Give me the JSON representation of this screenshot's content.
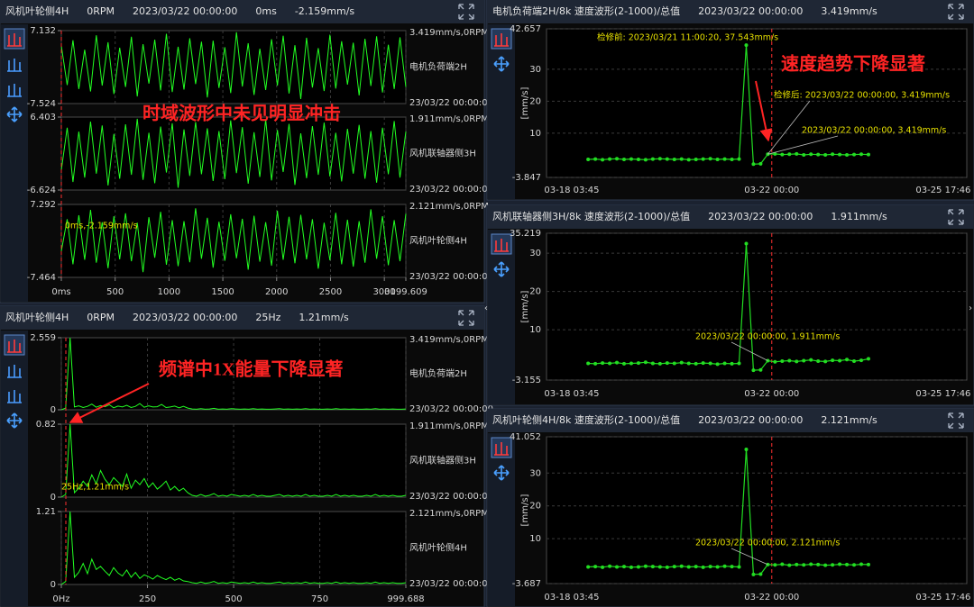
{
  "chart_data": [
    {
      "type": "line",
      "header": [
        "风机叶轮侧4H",
        "0RPM",
        "2023/03/22 00:00:00",
        "0ms",
        "-2.159mm/s"
      ],
      "xlim": [
        0,
        3199.609
      ],
      "xticks": [
        {
          "value": 0,
          "label": "0ms"
        },
        500,
        1000,
        1500,
        2000,
        2500,
        3000,
        3199.609
      ],
      "grid": true,
      "series": [
        {
          "name": "电机负荷端2H",
          "top_label": "3.419mm/s,0RPM",
          "bottom_label": "23/03/22 00:00:00",
          "color": "#22ff22",
          "ylim": [
            -7.524,
            7.132
          ],
          "yticks": [
            -7.524,
            7.132
          ],
          "values": [
            4.1,
            -3.8,
            5.2,
            -4.6,
            3.3,
            -5.1,
            6.2,
            -3.9,
            4.8,
            -5.6,
            3.7,
            -4.2,
            5.9,
            -6.1,
            4.4,
            -3.5,
            5.3,
            -4.9,
            6.5,
            -5.2,
            3.9,
            -4.7,
            5.6,
            -3.6,
            4.9,
            -6.3,
            5.1,
            -4.4,
            3.8,
            -5.4,
            6.8,
            -4.1,
            4.6,
            -5.8,
            3.5,
            -4.8,
            5.4,
            -3.9,
            6.1,
            -5.5,
            4.2,
            -6.6,
            5.7,
            -4.3,
            3.6,
            -5.0,
            6.3,
            -4.5,
            5.0,
            -3.7,
            4.7,
            -5.9,
            5.5,
            -4.0,
            6.0,
            -5.3,
            4.3,
            -4.6,
            5.8,
            -4.2
          ]
        },
        {
          "name": "风机联轴器侧3H",
          "top_label": "1.911mm/s,0RPM",
          "bottom_label": "23/03/22 00:00:00",
          "color": "#22ff22",
          "ylim": [
            -6.624,
            6.403
          ],
          "yticks": [
            -6.624,
            6.403
          ],
          "values": [
            -3.1,
            4.5,
            -5.2,
            3.8,
            -4.4,
            5.6,
            -3.7,
            4.9,
            -5.8,
            3.4,
            -4.6,
            5.1,
            -3.9,
            6.1,
            -4.8,
            3.6,
            -5.4,
            4.7,
            -3.5,
            5.3,
            -6.2,
            4.2,
            -4.1,
            5.5,
            -3.8,
            4.4,
            -5.0,
            3.9,
            -4.7,
            5.8,
            -3.6,
            4.6,
            -5.5,
            3.7,
            -4.3,
            6.0,
            -4.9,
            4.1,
            -3.4,
            5.2,
            -5.7,
            3.5,
            -4.5,
            4.8,
            -3.9,
            5.4,
            -4.2,
            3.6,
            -5.1,
            4.3,
            -3.7,
            5.0,
            -4.6,
            3.9,
            -5.3,
            4.5,
            -3.8,
            5.7,
            -4.4,
            3.8
          ]
        },
        {
          "name": "风机叶轮侧4H",
          "top_label": "2.121mm/s,0RPM",
          "bottom_label": "23/03/22 00:00:00",
          "color": "#22ff22",
          "ylim": [
            -7.464,
            7.292
          ],
          "yticks": [
            -7.464,
            7.292
          ],
          "values": [
            -2.159,
            4.3,
            -4.8,
            5.1,
            -3.9,
            6.2,
            -4.5,
            3.7,
            -5.6,
            4.9,
            -3.8,
            5.5,
            -4.2,
            3.6,
            -6.4,
            4.7,
            -3.5,
            5.8,
            -4.9,
            4.1,
            -5.2,
            3.9,
            -4.4,
            6.5,
            -3.7,
            4.6,
            -5.5,
            3.8,
            -4.1,
            5.3,
            -3.6,
            4.4,
            -5.9,
            5.0,
            -4.3,
            3.7,
            -5.1,
            6.0,
            -3.9,
            4.8,
            -4.6,
            5.2,
            -3.8,
            4.3,
            -5.7,
            3.6,
            -4.0,
            5.6,
            -4.8,
            4.2,
            -5.3,
            3.9,
            -4.5,
            6.3,
            -3.7,
            4.9,
            -5.0,
            4.1,
            -4.2,
            5.4
          ]
        }
      ],
      "cursor_label": "0ms,-2.159mm/s",
      "callout": "时域波形中未见明显冲击"
    },
    {
      "type": "line",
      "header": [
        "风机叶轮侧4H",
        "0RPM",
        "2023/03/22 00:00:00",
        "25Hz",
        "1.21mm/s"
      ],
      "xlim": [
        0,
        999.688
      ],
      "xticks": [
        {
          "value": 0,
          "label": "0Hz"
        },
        250,
        500,
        750,
        999.688
      ],
      "grid": true,
      "series": [
        {
          "name": "电机负荷端2H",
          "top_label": "3.419mm/s,0RPM",
          "bottom_label": "23/03/22 00:00:00",
          "color": "#22ff22",
          "ylim": [
            0,
            2.559
          ],
          "yticks": [
            0,
            2.559
          ],
          "values": [
            0,
            0.06,
            2.559,
            0.1,
            0.14,
            0.08,
            0.12,
            0.2,
            0.09,
            0.15,
            0.11,
            0.18,
            0.07,
            0.13,
            0.1,
            0.16,
            0.08,
            0.12,
            0.22,
            0.09,
            0.14,
            0.1,
            0.11,
            0.19,
            0.08,
            0.1,
            0.13,
            0.07,
            0.12,
            0.06,
            0.03,
            0.02,
            0.04,
            0.02,
            0.03,
            0.05,
            0.02,
            0.03,
            0.02,
            0.04,
            0.03,
            0.02,
            0.03,
            0.02,
            0.04,
            0.02,
            0.03,
            0.02,
            0.02,
            0.03,
            0.04,
            0.02,
            0.03,
            0.02,
            0.03,
            0.02,
            0.04,
            0.02,
            0.03,
            0.02,
            0.02,
            0.03,
            0.02,
            0.04,
            0.02,
            0.03,
            0.02,
            0.03,
            0.02,
            0.02,
            0.03,
            0.02,
            0.04,
            0.02,
            0.03,
            0.02,
            0.03,
            0.02,
            0.02,
            0.03
          ]
        },
        {
          "name": "风机联轴器侧3H",
          "top_label": "1.911mm/s,0RPM",
          "bottom_label": "23/03/22 00:00:00",
          "color": "#22ff22",
          "ylim": [
            0,
            0.82
          ],
          "yticks": [
            0,
            0.82
          ],
          "values": [
            0,
            0.03,
            0.82,
            0.05,
            0.1,
            0.18,
            0.12,
            0.25,
            0.15,
            0.3,
            0.2,
            0.14,
            0.22,
            0.17,
            0.12,
            0.26,
            0.1,
            0.19,
            0.14,
            0.21,
            0.11,
            0.16,
            0.09,
            0.13,
            0.18,
            0.08,
            0.12,
            0.07,
            0.1,
            0.05,
            0.02,
            0.01,
            0.03,
            0.01,
            0.02,
            0.04,
            0.01,
            0.02,
            0.01,
            0.03,
            0.02,
            0.01,
            0.02,
            0.01,
            0.03,
            0.01,
            0.02,
            0.01,
            0.01,
            0.02,
            0.03,
            0.01,
            0.02,
            0.01,
            0.02,
            0.01,
            0.03,
            0.01,
            0.02,
            0.01,
            0.01,
            0.02,
            0.01,
            0.03,
            0.01,
            0.02,
            0.01,
            0.02,
            0.01,
            0.01,
            0.02,
            0.01,
            0.03,
            0.01,
            0.02,
            0.01,
            0.02,
            0.01,
            0.01,
            0.02
          ]
        },
        {
          "name": "风机叶轮侧4H",
          "top_label": "2.121mm/s,0RPM",
          "bottom_label": "23/03/22 00:00:00",
          "color": "#22ff22",
          "ylim": [
            0,
            1.21
          ],
          "yticks": [
            0,
            1.21
          ],
          "values": [
            0,
            0.05,
            1.21,
            0.12,
            0.2,
            0.35,
            0.18,
            0.42,
            0.25,
            0.3,
            0.22,
            0.15,
            0.28,
            0.19,
            0.14,
            0.24,
            0.12,
            0.2,
            0.1,
            0.16,
            0.13,
            0.09,
            0.15,
            0.11,
            0.08,
            0.12,
            0.07,
            0.1,
            0.06,
            0.05,
            0.03,
            0.02,
            0.04,
            0.02,
            0.03,
            0.05,
            0.02,
            0.03,
            0.02,
            0.04,
            0.03,
            0.02,
            0.03,
            0.02,
            0.04,
            0.02,
            0.03,
            0.02,
            0.02,
            0.03,
            0.04,
            0.02,
            0.03,
            0.02,
            0.03,
            0.02,
            0.04,
            0.02,
            0.03,
            0.02,
            0.02,
            0.03,
            0.02,
            0.04,
            0.02,
            0.03,
            0.02,
            0.03,
            0.02,
            0.02,
            0.03,
            0.02,
            0.04,
            0.02,
            0.03,
            0.02,
            0.03,
            0.02,
            0.02,
            0.03
          ]
        }
      ],
      "cursor_label": "25Hz,1.21mm/s",
      "callout": "频谱中1X能量下降显著"
    },
    {
      "type": "line",
      "header": [
        "电机负荷端2H/8k 速度波形(2-1000)/总值",
        "2023/03/22 00:00:00",
        "3.419mm/s"
      ],
      "ylabel": "[mm/s]",
      "ylim": [
        -3.847,
        42.657
      ],
      "yticks": [
        -3.847,
        10,
        20,
        30,
        42.657
      ],
      "grid": true,
      "markers": true,
      "xtick_labels": [
        "03-18 03:45",
        "03-22 00:00",
        "03-25 17:46"
      ],
      "series": [
        {
          "color": "#22dd22",
          "values": [
            1.8,
            1.9,
            1.7,
            1.9,
            2.0,
            1.8,
            1.9,
            1.8,
            1.7,
            1.9,
            2.0,
            1.9,
            1.8,
            1.9,
            1.7,
            1.8,
            1.9,
            2.0,
            1.8,
            1.9,
            1.8,
            1.9,
            37.543,
            0.3,
            0.4,
            3.419,
            3.5,
            3.3,
            3.4,
            3.5,
            3.2,
            3.4,
            3.3,
            3.2,
            3.4,
            3.3,
            3.2,
            3.3,
            3.4,
            3.3
          ]
        }
      ],
      "annotations": [
        "检修前: 2023/03/21 11:00:20, 37.543mm/s",
        "检修后: 2023/03/22 00:00:00, 3.419mm/s",
        "2023/03/22 00:00:00, 3.419mm/s"
      ],
      "callout": "速度趋势下降显著"
    },
    {
      "type": "line",
      "header": [
        "风机联轴器侧3H/8k 速度波形(2-1000)/总值",
        "2023/03/22 00:00:00",
        "1.911mm/s"
      ],
      "ylabel": "[mm/s]",
      "ylim": [
        -3.155,
        35.219
      ],
      "yticks": [
        -3.155,
        10,
        20,
        30,
        35.219
      ],
      "grid": true,
      "markers": true,
      "xtick_labels": [
        "03-18 03:45",
        "03-22 00:00",
        "03-25 17:46"
      ],
      "series": [
        {
          "color": "#22dd22",
          "values": [
            1.2,
            1.1,
            1.3,
            1.2,
            1.4,
            1.1,
            1.2,
            1.3,
            1.5,
            1.2,
            1.1,
            1.3,
            1.2,
            1.4,
            1.2,
            1.1,
            1.3,
            1.2,
            1.0,
            1.2,
            1.1,
            1.2,
            32.5,
            -0.6,
            -0.5,
            1.911,
            1.6,
            1.8,
            1.9,
            1.7,
            1.9,
            2.1,
            1.8,
            1.7,
            2.0,
            1.9,
            2.2,
            1.8,
            2.0,
            2.4
          ]
        }
      ],
      "annotations": [
        "2023/03/22 00:00:00, 1.911mm/s"
      ]
    },
    {
      "type": "line",
      "header": [
        "风机叶轮侧4H/8k 速度波形(2-1000)/总值",
        "2023/03/22 00:00:00",
        "2.121mm/s"
      ],
      "ylabel": "[mm/s]",
      "ylim": [
        -3.687,
        41.052
      ],
      "yticks": [
        -3.687,
        10,
        20,
        30,
        41.052
      ],
      "grid": true,
      "markers": true,
      "xtick_labels": [
        "03-18 03:45",
        "03-22 00:00",
        "03-25 17:46"
      ],
      "series": [
        {
          "color": "#22dd22",
          "values": [
            1.4,
            1.5,
            1.3,
            1.6,
            1.4,
            1.5,
            1.3,
            1.4,
            1.6,
            1.5,
            1.4,
            1.3,
            1.5,
            1.6,
            1.4,
            1.5,
            1.3,
            1.5,
            1.4,
            1.6,
            1.5,
            1.4,
            37.2,
            -0.9,
            -0.8,
            2.121,
            2.0,
            2.2,
            1.9,
            2.1,
            2.0,
            2.2,
            2.1,
            1.9,
            2.0,
            2.2,
            2.1,
            2.0,
            2.2,
            2.1
          ]
        }
      ],
      "annotations": [
        "2023/03/22 00:00:00, 2.121mm/s"
      ]
    }
  ]
}
